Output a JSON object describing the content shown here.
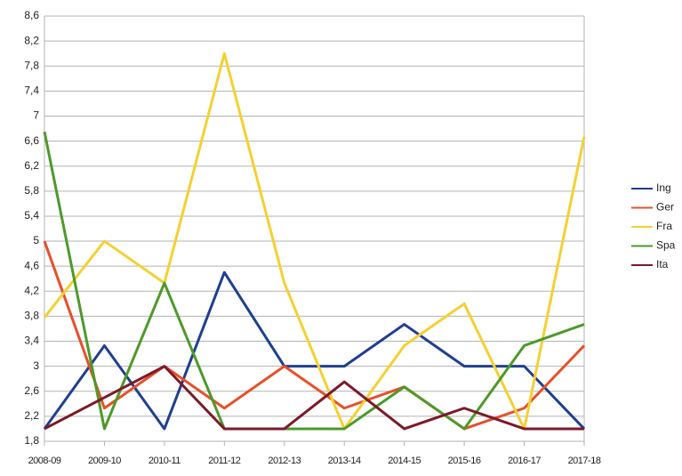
{
  "chart_data": {
    "type": "line",
    "categories": [
      "2008-09",
      "2009-10",
      "2010-11",
      "2011-12",
      "2012-13",
      "2013-14",
      "2014-15",
      "2015-16",
      "2016-17",
      "2017-18"
    ],
    "series": [
      {
        "name": "Ing",
        "color": "#1f3f8f",
        "values": [
          2,
          3.33,
          2,
          4.5,
          3,
          3,
          3.67,
          3,
          3,
          2
        ]
      },
      {
        "name": "Ger",
        "color": "#e8502a",
        "values": [
          5,
          2.33,
          3,
          2.33,
          3,
          2.33,
          2.67,
          2,
          2.33,
          3.33
        ]
      },
      {
        "name": "Fra",
        "color": "#f5d033",
        "values": [
          3.78,
          5,
          4.33,
          8,
          4.33,
          2,
          3.33,
          4,
          2,
          6.67
        ]
      },
      {
        "name": "Spa",
        "color": "#4c9a2a",
        "values": [
          6.75,
          2,
          4.33,
          2,
          2,
          2,
          2.67,
          2,
          3.33,
          3.67
        ]
      },
      {
        "name": "Ita",
        "color": "#7b1a2a",
        "values": [
          2,
          2.5,
          3,
          2,
          2,
          2.75,
          2,
          2.33,
          2,
          2
        ]
      }
    ],
    "ylim": [
      1.8,
      8.6
    ],
    "yticks": [
      {
        "value": 1.8,
        "label": "1,8"
      },
      {
        "value": 2.2,
        "label": "2,2"
      },
      {
        "value": 2.6,
        "label": "2,6"
      },
      3,
      {
        "value": 3.4,
        "label": "3,4"
      },
      {
        "value": 3.8,
        "label": "3,8"
      },
      {
        "value": 4.2,
        "label": "4,2"
      },
      {
        "value": 4.6,
        "label": "4,6"
      },
      5,
      {
        "value": 5.4,
        "label": "5,4"
      },
      {
        "value": 5.8,
        "label": "5,8"
      },
      {
        "value": 6.2,
        "label": "6,2"
      },
      {
        "value": 6.6,
        "label": "6,6"
      },
      7,
      {
        "value": 7.4,
        "label": "7,4"
      },
      {
        "value": 7.8,
        "label": "7,8"
      },
      {
        "value": 8.2,
        "label": "8,2"
      },
      {
        "value": 8.6,
        "label": "8,6"
      }
    ],
    "grid": true,
    "legend": "right"
  }
}
